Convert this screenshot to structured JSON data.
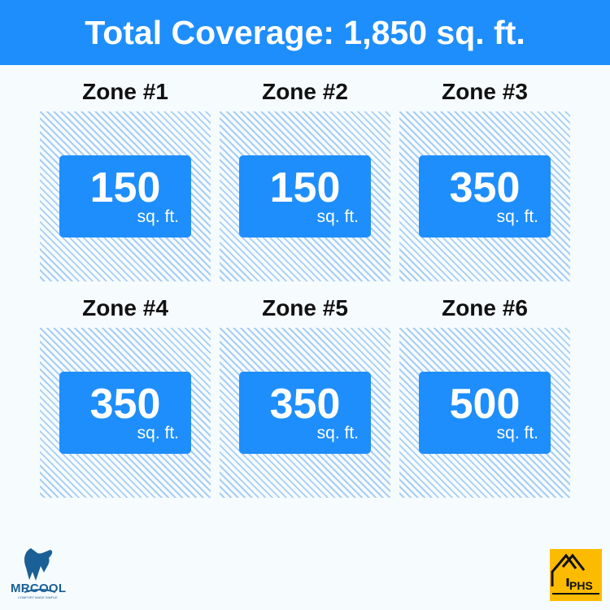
{
  "header": {
    "title": "Total Coverage: 1,850 sq. ft."
  },
  "zones": [
    {
      "label": "Zone #1",
      "value": "150",
      "unit": "sq. ft."
    },
    {
      "label": "Zone #2",
      "value": "150",
      "unit": "sq. ft."
    },
    {
      "label": "Zone #3",
      "value": "350",
      "unit": "sq. ft."
    },
    {
      "label": "Zone #4",
      "value": "350",
      "unit": "sq. ft."
    },
    {
      "label": "Zone #5",
      "value": "350",
      "unit": "sq. ft."
    },
    {
      "label": "Zone #6",
      "value": "500",
      "unit": "sq. ft."
    }
  ],
  "logos": {
    "left": "MRCOOL",
    "left_tagline": "COMFORT MADE SIMPLE",
    "right": "PHS"
  },
  "colors": {
    "accent": "#1e8efc",
    "hatch": "#a8cef4",
    "phs": "#fdbb00"
  }
}
